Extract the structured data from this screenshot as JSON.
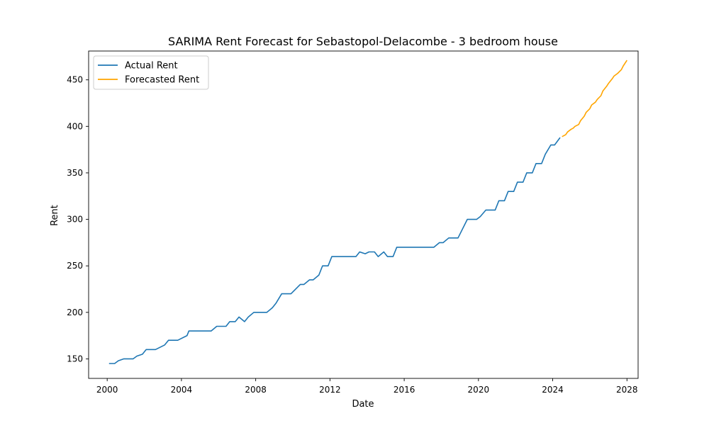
{
  "chart_data": {
    "type": "line",
    "title": "SARIMA Rent Forecast for Sebastopol-Delacombe - 3 bedroom house",
    "xlabel": "Date",
    "ylabel": "Rent",
    "xlim": [
      1999.0,
      2028.6
    ],
    "ylim": [
      129,
      481
    ],
    "x_ticks": [
      2000,
      2004,
      2008,
      2012,
      2016,
      2020,
      2024,
      2028
    ],
    "y_ticks": [
      150,
      200,
      250,
      300,
      350,
      400,
      450
    ],
    "grid": false,
    "legend_position": "top-left",
    "series": [
      {
        "name": "Actual Rent",
        "color": "#1f77b4",
        "points": [
          [
            2000.1,
            145
          ],
          [
            2000.4,
            145
          ],
          [
            2000.6,
            148
          ],
          [
            2000.9,
            150
          ],
          [
            2001.4,
            150
          ],
          [
            2001.6,
            153
          ],
          [
            2001.9,
            155
          ],
          [
            2002.1,
            160
          ],
          [
            2002.6,
            160
          ],
          [
            2003.1,
            165
          ],
          [
            2003.3,
            170
          ],
          [
            2003.8,
            170
          ],
          [
            2004.3,
            175
          ],
          [
            2004.4,
            180
          ],
          [
            2005.1,
            180
          ],
          [
            2005.6,
            180
          ],
          [
            2005.9,
            185
          ],
          [
            2006.4,
            185
          ],
          [
            2006.6,
            190
          ],
          [
            2006.9,
            190
          ],
          [
            2007.1,
            195
          ],
          [
            2007.4,
            190
          ],
          [
            2007.6,
            195
          ],
          [
            2007.9,
            200
          ],
          [
            2008.4,
            200
          ],
          [
            2008.6,
            200
          ],
          [
            2008.9,
            205
          ],
          [
            2009.1,
            210
          ],
          [
            2009.4,
            220
          ],
          [
            2009.9,
            220
          ],
          [
            2010.4,
            230
          ],
          [
            2010.6,
            230
          ],
          [
            2010.9,
            235
          ],
          [
            2011.1,
            235
          ],
          [
            2011.4,
            240
          ],
          [
            2011.6,
            250
          ],
          [
            2011.9,
            250
          ],
          [
            2012.1,
            260
          ],
          [
            2012.6,
            260
          ],
          [
            2013.1,
            260
          ],
          [
            2013.4,
            260
          ],
          [
            2013.6,
            265
          ],
          [
            2013.9,
            263
          ],
          [
            2014.1,
            265
          ],
          [
            2014.4,
            265
          ],
          [
            2014.6,
            260
          ],
          [
            2014.9,
            265
          ],
          [
            2015.1,
            260
          ],
          [
            2015.4,
            260
          ],
          [
            2015.6,
            270
          ],
          [
            2016.1,
            270
          ],
          [
            2016.6,
            270
          ],
          [
            2017.1,
            270
          ],
          [
            2017.6,
            270
          ],
          [
            2017.9,
            275
          ],
          [
            2018.1,
            275
          ],
          [
            2018.4,
            280
          ],
          [
            2018.9,
            280
          ],
          [
            2019.4,
            300
          ],
          [
            2019.9,
            300
          ],
          [
            2020.1,
            303
          ],
          [
            2020.4,
            310
          ],
          [
            2020.9,
            310
          ],
          [
            2021.1,
            320
          ],
          [
            2021.4,
            320
          ],
          [
            2021.6,
            330
          ],
          [
            2021.9,
            330
          ],
          [
            2022.1,
            340
          ],
          [
            2022.4,
            340
          ],
          [
            2022.6,
            350
          ],
          [
            2022.9,
            350
          ],
          [
            2023.1,
            360
          ],
          [
            2023.4,
            360
          ],
          [
            2023.6,
            370
          ],
          [
            2023.9,
            380
          ],
          [
            2024.1,
            380
          ],
          [
            2024.4,
            388
          ]
        ]
      },
      {
        "name": "Forecasted Rent",
        "color": "#ffa500",
        "points": [
          [
            2024.5,
            389
          ],
          [
            2024.7,
            391
          ],
          [
            2024.8,
            394
          ],
          [
            2025.0,
            397
          ],
          [
            2025.1,
            398
          ],
          [
            2025.2,
            400
          ],
          [
            2025.4,
            402
          ],
          [
            2025.5,
            406
          ],
          [
            2025.7,
            411
          ],
          [
            2025.8,
            415
          ],
          [
            2026.0,
            419
          ],
          [
            2026.1,
            423
          ],
          [
            2026.3,
            426
          ],
          [
            2026.4,
            429
          ],
          [
            2026.6,
            433
          ],
          [
            2026.7,
            438
          ],
          [
            2026.9,
            443
          ],
          [
            2027.0,
            446
          ],
          [
            2027.2,
            451
          ],
          [
            2027.3,
            454
          ],
          [
            2027.5,
            457
          ],
          [
            2027.7,
            461
          ],
          [
            2027.8,
            465
          ],
          [
            2028.0,
            471
          ]
        ]
      }
    ]
  }
}
